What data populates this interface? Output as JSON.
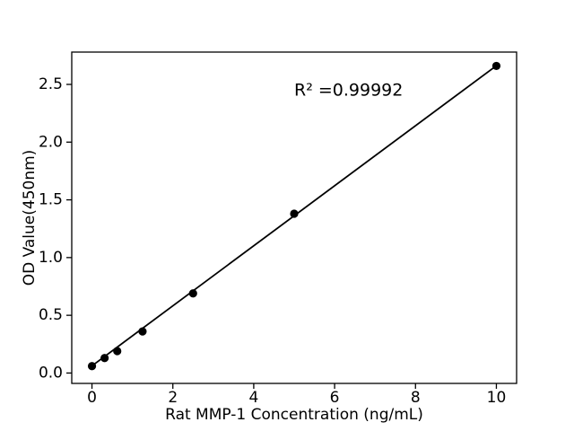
{
  "figure": {
    "background": "#ffffff"
  },
  "chart_data": {
    "type": "scatter",
    "title": "",
    "xlabel": "Rat MMP-1 Concentration (ng/mL)",
    "ylabel": "OD Value(450nm)",
    "annotation": {
      "text": "R² =0.99992",
      "x": 5,
      "y": 2.45
    },
    "x": [
      0,
      0.3125,
      0.625,
      1.25,
      2.5,
      5,
      10
    ],
    "y": [
      0.06,
      0.13,
      0.19,
      0.36,
      0.69,
      1.38,
      2.66
    ],
    "trendline": {
      "x1": 0,
      "y1": 0.062,
      "x2": 10,
      "y2": 2.662
    },
    "xlim": [
      -0.5,
      10.5
    ],
    "ylim": [
      -0.09,
      2.78
    ],
    "xticks": [
      0,
      2,
      4,
      6,
      8,
      10
    ],
    "xtick_labels": [
      "0",
      "2",
      "4",
      "6",
      "8",
      "10"
    ],
    "yticks": [
      0.0,
      0.5,
      1.0,
      1.5,
      2.0,
      2.5
    ],
    "ytick_labels": [
      "0.0",
      "0.5",
      "1.0",
      "1.5",
      "2.0",
      "2.5"
    ],
    "grid": false,
    "legend": null,
    "line_color": "#000000",
    "marker_color": "#000000",
    "axis_color": "#000000"
  }
}
